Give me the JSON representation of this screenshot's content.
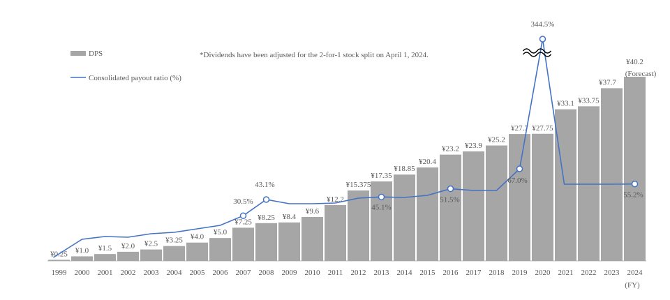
{
  "colors": {
    "bar": "#a6a6a6",
    "line": "#4472c4",
    "text": "#595959",
    "axis": "#bfbfbf"
  },
  "legend": {
    "bar_label": "DPS",
    "line_label": "Consolidated payout ratio (%)"
  },
  "note": "*Dividends have been adjusted for the 2-for-1 stock split on April 1, 2024.",
  "x_unit": "(FY)",
  "chart_data": {
    "type": "bar",
    "categories": [
      "1999",
      "2000",
      "2001",
      "2002",
      "2003",
      "2004",
      "2005",
      "2006",
      "2007",
      "2008",
      "2009",
      "2010",
      "2011",
      "2012",
      "2013",
      "2014",
      "2015",
      "2016",
      "2017",
      "2018",
      "2019",
      "2020",
      "2021",
      "2022",
      "2023",
      "2024"
    ],
    "series": [
      {
        "name": "DPS",
        "type": "bar",
        "values": [
          0.25,
          1.0,
          1.5,
          2.0,
          2.5,
          3.25,
          4.0,
          5.0,
          7.25,
          8.25,
          8.4,
          9.6,
          12.2,
          15.375,
          17.35,
          18.85,
          20.4,
          23.2,
          23.9,
          25.2,
          27.7,
          27.75,
          33.1,
          33.75,
          37.7,
          40.2
        ],
        "labels": [
          "¥0.25",
          "¥1.0",
          "¥1.5",
          "¥2.0",
          "¥2.5",
          "¥3.25",
          "¥4.0",
          "¥5.0",
          "¥7.25",
          "¥8.25",
          "¥8.4",
          "¥9.6",
          "¥12.2",
          "¥15.375",
          "¥17.35",
          "¥18.85",
          "¥20.4",
          "¥23.2",
          "¥23.9",
          "¥25.2",
          "¥27.7",
          "¥27.75",
          "¥33.1",
          "¥33.75",
          "¥37.7",
          "¥40.2"
        ]
      },
      {
        "name": "Consolidated payout ratio (%)",
        "type": "line",
        "values": [
          null,
          null,
          null,
          null,
          null,
          null,
          null,
          null,
          30.5,
          43.1,
          null,
          null,
          null,
          null,
          45.1,
          null,
          null,
          51.5,
          null,
          null,
          67.0,
          344.5,
          null,
          null,
          null,
          55.2
        ]
      }
    ],
    "forecast_label": "(Forecast)",
    "ratio_annotations": [
      {
        "index": 8,
        "text": "30.5%"
      },
      {
        "index": 9,
        "text": "43.1%"
      },
      {
        "index": 14,
        "text": "45.1%"
      },
      {
        "index": 17,
        "text": "51.5%"
      },
      {
        "index": 20,
        "text": "67.0%"
      },
      {
        "index": 21,
        "text": "344.5%"
      },
      {
        "index": 25,
        "text": "55.2%"
      }
    ],
    "axis_break": "between 67.0% and 344.5%",
    "legend_position": "top-left",
    "ylim": [
      0,
      40.2
    ]
  }
}
